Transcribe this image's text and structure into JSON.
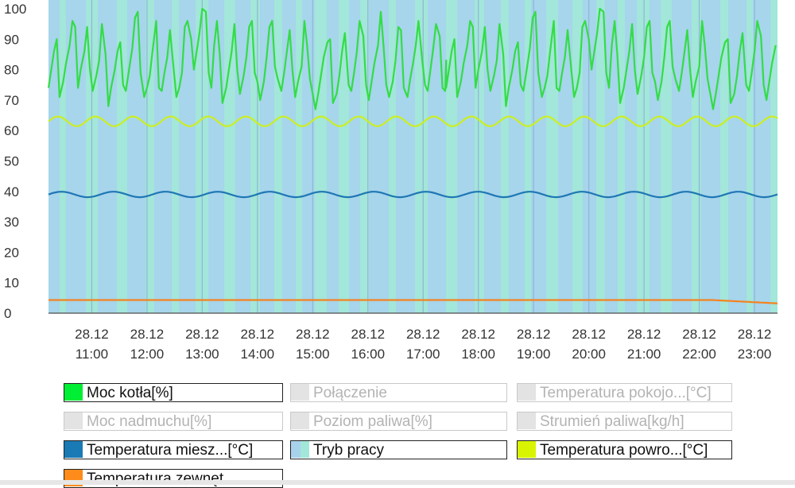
{
  "chart_data": {
    "type": "line",
    "x_labels": [
      {
        "date": "28.12",
        "time": "11:00"
      },
      {
        "date": "28.12",
        "time": "12:00"
      },
      {
        "date": "28.12",
        "time": "13:00"
      },
      {
        "date": "28.12",
        "time": "14:00"
      },
      {
        "date": "28.12",
        "time": "15:00"
      },
      {
        "date": "28.12",
        "time": "16:00"
      },
      {
        "date": "28.12",
        "time": "17:00"
      },
      {
        "date": "28.12",
        "time": "18:00"
      },
      {
        "date": "28.12",
        "time": "19:00"
      },
      {
        "date": "28.12",
        "time": "20:00"
      },
      {
        "date": "28.12",
        "time": "21:00"
      },
      {
        "date": "28.12",
        "time": "22:00"
      },
      {
        "date": "28.12",
        "time": "23:00"
      }
    ],
    "x_range": [
      "28.12 10:13",
      "28.12 23:25"
    ],
    "y_ticks": [
      0,
      10,
      20,
      30,
      40,
      50,
      60,
      70,
      80,
      90,
      100
    ],
    "ylim": [
      0,
      100
    ],
    "grid": "vertical",
    "background_series": {
      "name": "Tryb pracy",
      "colors": [
        "#a6d5ec",
        "#a3e6da"
      ],
      "description_hidden": true
    },
    "series": [
      {
        "name": "Moc kotła[%]",
        "color": "#33dd44",
        "points": [
          [
            "10:13",
            74
          ],
          [
            "10:16",
            80
          ],
          [
            "10:19",
            86
          ],
          [
            "10:22",
            90
          ],
          [
            "10:25",
            71
          ],
          [
            "10:29",
            76
          ],
          [
            "10:32",
            82
          ],
          [
            "10:36",
            88
          ],
          [
            "10:39",
            96
          ],
          [
            "10:42",
            94
          ],
          [
            "10:45",
            74
          ],
          [
            "10:48",
            80
          ],
          [
            "10:52",
            86
          ],
          [
            "10:55",
            94
          ],
          [
            "10:58",
            80
          ],
          [
            "11:01",
            73
          ],
          [
            "11:05",
            78
          ],
          [
            "11:08",
            83
          ],
          [
            "11:11",
            95
          ],
          [
            "11:15",
            85
          ],
          [
            "11:18",
            68
          ],
          [
            "11:21",
            74
          ],
          [
            "11:25",
            80
          ],
          [
            "11:28",
            86
          ],
          [
            "11:31",
            89
          ],
          [
            "11:34",
            75
          ],
          [
            "11:37",
            73
          ],
          [
            "11:41",
            81
          ],
          [
            "11:44",
            87
          ],
          [
            "11:47",
            97
          ],
          [
            "11:50",
            99
          ],
          [
            "11:53",
            79
          ],
          [
            "11:57",
            71
          ],
          [
            "12:00",
            74
          ],
          [
            "12:03",
            78
          ],
          [
            "12:06",
            86
          ],
          [
            "12:10",
            96
          ],
          [
            "12:13",
            74
          ],
          [
            "12:16",
            73
          ],
          [
            "12:19",
            79
          ],
          [
            "12:22",
            84
          ],
          [
            "12:25",
            93
          ],
          [
            "12:29",
            80
          ],
          [
            "12:32",
            71
          ],
          [
            "12:35",
            74
          ],
          [
            "12:38",
            79
          ],
          [
            "12:41",
            94
          ],
          [
            "12:44",
            96
          ],
          [
            "12:48",
            90
          ],
          [
            "12:51",
            80
          ],
          [
            "12:54",
            86
          ],
          [
            "12:57",
            92
          ],
          [
            "13:00",
            100
          ],
          [
            "13:04",
            99
          ],
          [
            "13:07",
            79
          ],
          [
            "13:10",
            74
          ],
          [
            "13:13",
            88
          ],
          [
            "13:16",
            96
          ],
          [
            "13:19",
            85
          ],
          [
            "13:22",
            69
          ],
          [
            "13:26",
            74
          ],
          [
            "13:29",
            80
          ],
          [
            "13:32",
            86
          ],
          [
            "13:35",
            95
          ],
          [
            "13:38",
            80
          ],
          [
            "13:41",
            72
          ],
          [
            "13:45",
            78
          ],
          [
            "13:48",
            84
          ],
          [
            "13:51",
            94
          ],
          [
            "13:54",
            96
          ],
          [
            "13:57",
            79
          ],
          [
            "14:00",
            76
          ],
          [
            "14:03",
            70
          ],
          [
            "14:07",
            76
          ],
          [
            "14:10",
            84
          ],
          [
            "14:13",
            94
          ],
          [
            "14:16",
            96
          ],
          [
            "14:19",
            81
          ],
          [
            "14:22",
            77
          ],
          [
            "14:26",
            73
          ],
          [
            "14:29",
            79
          ],
          [
            "14:32",
            86
          ],
          [
            "14:35",
            93
          ],
          [
            "14:38",
            80
          ],
          [
            "14:41",
            71
          ],
          [
            "14:44",
            76
          ],
          [
            "14:48",
            81
          ],
          [
            "14:51",
            96
          ],
          [
            "14:54",
            88
          ],
          [
            "14:57",
            77
          ],
          [
            "15:00",
            72
          ],
          [
            "15:03",
            67
          ],
          [
            "15:06",
            72
          ],
          [
            "15:09",
            78
          ],
          [
            "15:12",
            84
          ],
          [
            "15:16",
            89
          ],
          [
            "15:19",
            90
          ],
          [
            "15:22",
            69
          ],
          [
            "15:26",
            72
          ],
          [
            "15:29",
            78
          ],
          [
            "15:32",
            86
          ],
          [
            "15:35",
            92
          ],
          [
            "15:39",
            75
          ],
          [
            "15:42",
            73
          ],
          [
            "15:45",
            79
          ],
          [
            "15:48",
            86
          ],
          [
            "15:51",
            96
          ],
          [
            "15:55",
            91
          ],
          [
            "15:58",
            75
          ],
          [
            "16:01",
            70
          ],
          [
            "16:04",
            76
          ],
          [
            "16:07",
            82
          ],
          [
            "16:11",
            88
          ],
          [
            "16:14",
            99
          ],
          [
            "16:17",
            88
          ],
          [
            "16:20",
            75
          ],
          [
            "16:23",
            71
          ],
          [
            "16:27",
            76
          ],
          [
            "16:30",
            83
          ],
          [
            "16:33",
            94
          ],
          [
            "16:36",
            93
          ],
          [
            "16:39",
            74
          ],
          [
            "16:43",
            71
          ],
          [
            "16:46",
            77
          ],
          [
            "16:49",
            82
          ],
          [
            "16:52",
            88
          ],
          [
            "16:55",
            96
          ],
          [
            "16:59",
            83
          ],
          [
            "17:02",
            75
          ],
          [
            "17:05",
            73
          ],
          [
            "17:08",
            80
          ],
          [
            "17:11",
            87
          ],
          [
            "17:14",
            95
          ],
          [
            "17:18",
            91
          ],
          [
            "17:21",
            74
          ],
          [
            "17:24",
            73
          ],
          [
            "17:25",
            83
          ]
        ]
      },
      {
        "name": "Temperatura powro...[°C]",
        "color": "#ccee22",
        "points": []
      },
      {
        "name": "Temperatura miesz...[°C]",
        "color": "#1f77b4",
        "points": []
      },
      {
        "name": "Temperatura zewnęt...",
        "color": "#f58220",
        "points": []
      }
    ]
  },
  "legend": {
    "items": [
      {
        "label": "Moc kotła[%]",
        "color": "#00ee33",
        "enabled": true
      },
      {
        "label": "Połączenie",
        "color": "#e3e3e3",
        "enabled": false
      },
      {
        "label": "Temperatura pokojo...[°C]",
        "color": "#e3e3e3",
        "enabled": false
      },
      {
        "label": "Moc nadmuchu[%]",
        "color": "#e3e3e3",
        "enabled": false
      },
      {
        "label": "Poziom paliwa[%]",
        "color": "#e3e3e3",
        "enabled": false
      },
      {
        "label": "Strumień paliwa[kg/h]",
        "color": "#e3e3e3",
        "enabled": false
      },
      {
        "label": "Temperatura miesz...[°C]",
        "color": "#1a7ab5",
        "enabled": true
      },
      {
        "label": "Tryb pracy",
        "color": "#a8d2ec",
        "color2": "#a3e6da",
        "enabled": true
      },
      {
        "label": "Temperatura powro...[°C]",
        "color": "#d8f400",
        "enabled": true
      },
      {
        "label": "Temperatura zewnęt...",
        "color": "#ff8c1a",
        "enabled": true
      }
    ]
  }
}
